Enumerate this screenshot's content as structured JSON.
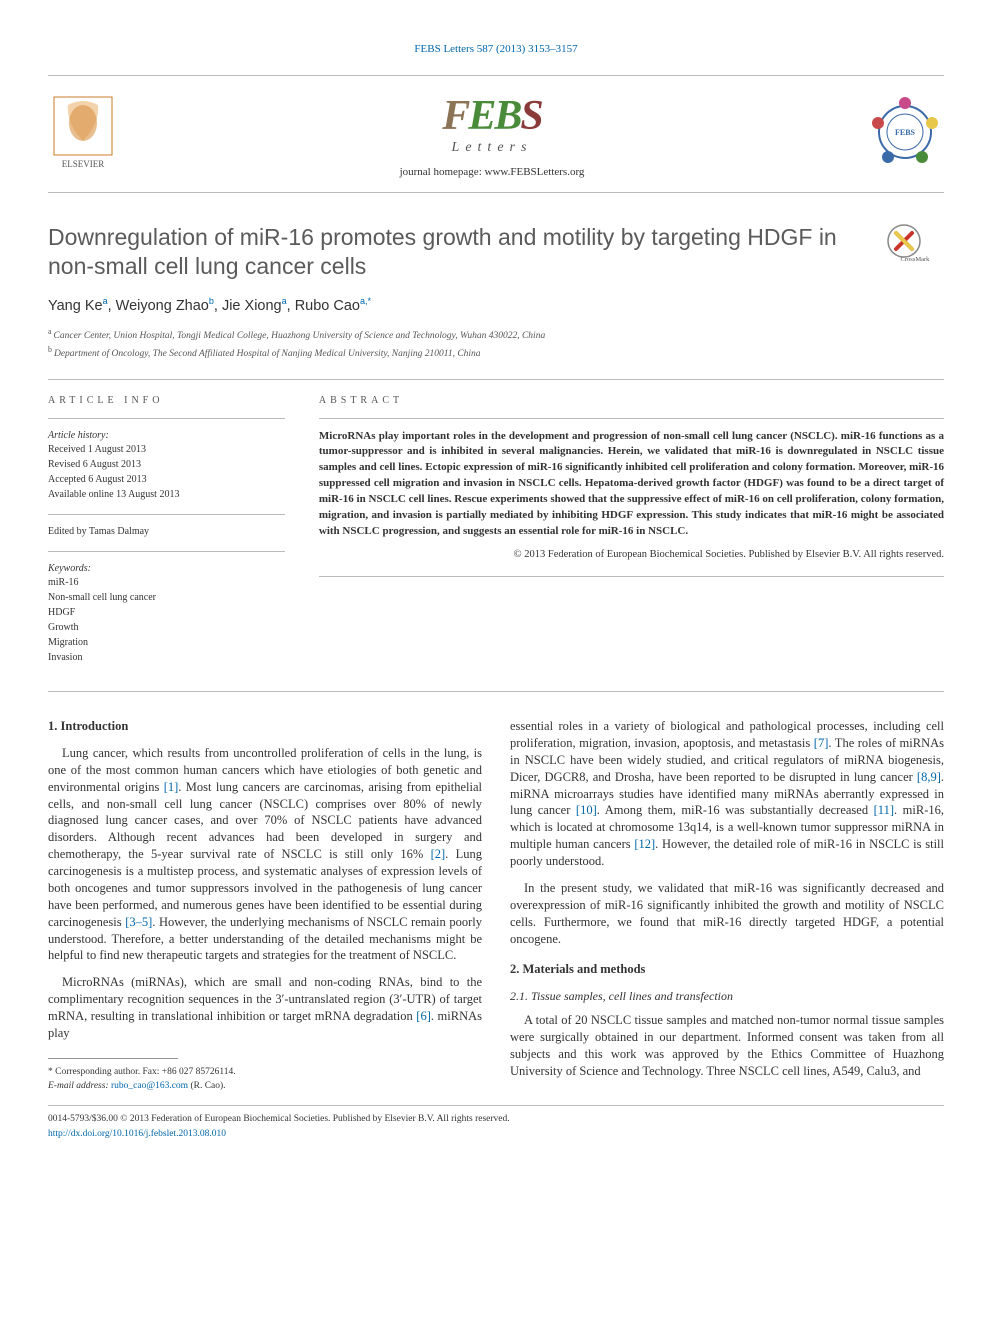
{
  "top_link_text": "FEBS Letters 587 (2013) 3153–3157",
  "journal": {
    "name_chars": [
      "F",
      "E",
      "B",
      "S"
    ],
    "sub": "Letters",
    "homepage_label": "journal homepage: ",
    "homepage_url": "www.FEBSLetters.org"
  },
  "title": "Downregulation of miR-16 promotes growth and motility by targeting HDGF in non-small cell lung cancer cells",
  "crossmark_label": "CrossMark",
  "authors_html": "Yang Ke ᵃ, Weiyong Zhao ᵇ, Jie Xiong ᵃ, Rubo Cao ᵃ·*",
  "authors": [
    {
      "name": "Yang Ke",
      "aff": "a"
    },
    {
      "name": "Weiyong Zhao",
      "aff": "b"
    },
    {
      "name": "Jie Xiong",
      "aff": "a"
    },
    {
      "name": "Rubo Cao",
      "aff": "a,*"
    }
  ],
  "affiliations": [
    {
      "sup": "a",
      "text": "Cancer Center, Union Hospital, Tongji Medical College, Huazhong University of Science and Technology, Wuhan 430022, China"
    },
    {
      "sup": "b",
      "text": "Department of Oncology, The Second Affiliated Hospital of Nanjing Medical University, Nanjing 210011, China"
    }
  ],
  "article_info": {
    "heading": "ARTICLE INFO",
    "history_label": "Article history:",
    "history": [
      "Received 1 August 2013",
      "Revised 6 August 2013",
      "Accepted 6 August 2013",
      "Available online 13 August 2013"
    ],
    "edited_by": "Edited by Tamas Dalmay",
    "keywords_label": "Keywords:",
    "keywords": [
      "miR-16",
      "Non-small cell lung cancer",
      "HDGF",
      "Growth",
      "Migration",
      "Invasion"
    ]
  },
  "abstract": {
    "heading": "ABSTRACT",
    "body": "MicroRNAs play important roles in the development and progression of non-small cell lung cancer (NSCLC). miR-16 functions as a tumor-suppressor and is inhibited in several malignancies. Herein, we validated that miR-16 is downregulated in NSCLC tissue samples and cell lines. Ectopic expression of miR-16 significantly inhibited cell proliferation and colony formation. Moreover, miR-16 suppressed cell migration and invasion in NSCLC cells. Hepatoma-derived growth factor (HDGF) was found to be a direct target of miR-16 in NSCLC cell lines. Rescue experiments showed that the suppressive effect of miR-16 on cell proliferation, colony formation, migration, and invasion is partially mediated by inhibiting HDGF expression. This study indicates that miR-16 might be associated with NSCLC progression, and suggests an essential role for miR-16 in NSCLC.",
    "copyright": "© 2013 Federation of European Biochemical Societies. Published by Elsevier B.V. All rights reserved."
  },
  "body": {
    "col1": {
      "sec1_heading": "1. Introduction",
      "p1": "Lung cancer, which results from uncontrolled proliferation of cells in the lung, is one of the most common human cancers which have etiologies of both genetic and environmental origins [1]. Most lung cancers are carcinomas, arising from epithelial cells, and non-small cell lung cancer (NSCLC) comprises over 80% of newly diagnosed lung cancer cases, and over 70% of NSCLC patients have advanced disorders. Although recent advances had been developed in surgery and chemotherapy, the 5-year survival rate of NSCLC is still only 16% [2]. Lung carcinogenesis is a multistep process, and systematic analyses of expression levels of both oncogenes and tumor suppressors involved in the pathogenesis of lung cancer have been performed, and numerous genes have been identified to be essential during carcinogenesis [3–5]. However, the underlying mechanisms of NSCLC remain poorly understood. Therefore, a better understanding of the detailed mechanisms might be helpful to find new therapeutic targets and strategies for the treatment of NSCLC.",
      "p2": "MicroRNAs (miRNAs), which are small and non-coding RNAs, bind to the complimentary recognition sequences in the 3′-untranslated region (3′-UTR) of target mRNA, resulting in translational inhibition or target mRNA degradation [6]. miRNAs play"
    },
    "col2": {
      "p1": "essential roles in a variety of biological and pathological processes, including cell proliferation, migration, invasion, apoptosis, and metastasis [7]. The roles of miRNAs in NSCLC have been widely studied, and critical regulators of miRNA biogenesis, Dicer, DGCR8, and Drosha, have been reported to be disrupted in lung cancer [8,9]. miRNA microarrays studies have identified many miRNAs aberrantly expressed in lung cancer [10]. Among them, miR-16 was substantially decreased [11]. miR-16, which is located at chromosome 13q14, is a well-known tumor suppressor miRNA in multiple human cancers [12]. However, the detailed role of miR-16 in NSCLC is still poorly understood.",
      "p2": "In the present study, we validated that miR-16 was significantly decreased and overexpression of miR-16 significantly inhibited the growth and motility of NSCLC cells. Furthermore, we found that miR-16 directly targeted HDGF, a potential oncogene.",
      "sec2_heading": "2. Materials and methods",
      "sub21_heading": "2.1. Tissue samples, cell lines and transfection",
      "p3": "A total of 20 NSCLC tissue samples and matched non-tumor normal tissue samples were surgically obtained in our department. Informed consent was taken from all subjects and this work was approved by the Ethics Committee of Huazhong University of Science and Technology. Three NSCLC cell lines, A549, Calu3, and"
    }
  },
  "footnote": {
    "corr_label": "* Corresponding author. Fax: +86 027 85726114.",
    "email_label": "E-mail address:",
    "email": "rubo_cao@163.com",
    "email_person": "(R. Cao)."
  },
  "footer": {
    "line1": "0014-5793/$36.00 © 2013 Federation of European Biochemical Societies. Published by Elsevier B.V. All rights reserved.",
    "doi": "http://dx.doi.org/10.1016/j.febslet.2013.08.010"
  },
  "colors": {
    "link": "#0066aa",
    "rule": "#bbbbbb",
    "title": "#5a5a5a",
    "febs_brown": "#8b7355",
    "febs_green": "#4a8b3a",
    "febs_red": "#8b3a3a"
  }
}
